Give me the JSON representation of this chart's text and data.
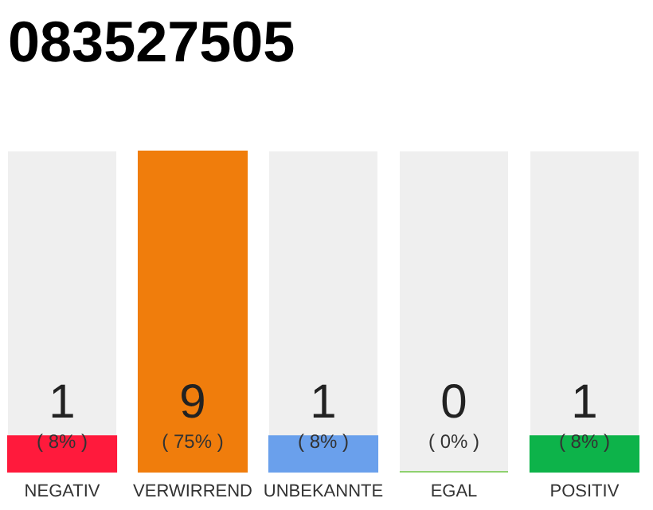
{
  "chart_data": {
    "type": "bar",
    "title": "083527505",
    "categories": [
      "NEGATIV",
      "VERWIRREND",
      "UNBEKANNTE",
      "EGAL",
      "POSITIV"
    ],
    "values": [
      1,
      9,
      1,
      0,
      1
    ],
    "colors": [
      "#ff1a3c",
      "#f07d0c",
      "#6aa0ec",
      "#8fd16f",
      "#0db34a"
    ],
    "data_labels": true,
    "annotations": [
      "( 8% )",
      "( 75% )",
      "( 8% )",
      "( 0% )",
      "( 8% )"
    ]
  }
}
